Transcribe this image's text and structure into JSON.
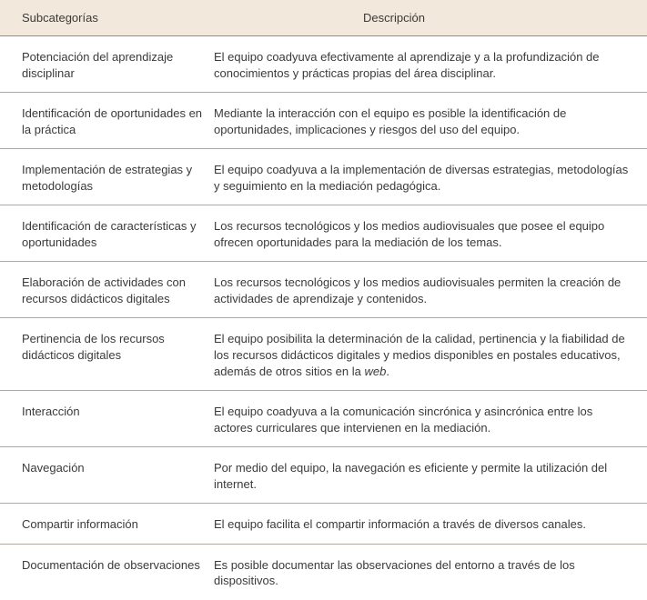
{
  "table": {
    "header": {
      "col1": "Subcategorías",
      "col2": "Descripción"
    },
    "rows": [
      {
        "label": "Potenciación del aprendizaje disciplinar",
        "desc": "El equipo coadyuva efectivamente al aprendizaje y a la profundización de conocimientos y prácticas propias del área disciplinar."
      },
      {
        "label": "Identificación de oportunidades en la práctica",
        "desc": "Mediante la interacción con el equipo es posible la identificación de oportunidades, implicaciones y riesgos del uso del equipo."
      },
      {
        "label": "Implementación de estrategias y metodologías",
        "desc": "El equipo coadyuva a la implementación de diversas estrategias, metodologías y seguimiento en la mediación pedagógica."
      },
      {
        "label": "Identificación de características y oportunidades",
        "desc": "Los recursos tecnológicos y los medios audiovisuales que posee el equipo ofrecen oportunidades para la mediación de los temas."
      },
      {
        "label": "Elaboración de actividades con recursos didácticos digitales",
        "desc": "Los recursos tecnológicos y los medios audiovisuales permiten la creación de actividades de aprendizaje y contenidos."
      },
      {
        "label": "Pertinencia de los recursos didácticos digitales",
        "desc_pre": "El equipo posibilita la determinación de la calidad, pertinencia y la fiabilidad de los recursos didácticos digitales y medios disponibles en postales educativos, además de otros sitios en la ",
        "desc_italic": "web",
        "desc_post": "."
      },
      {
        "label": "Interacción",
        "desc": "El equipo coadyuva a la comunicación sincrónica y asincrónica entre los actores curriculares que intervienen en la mediación."
      },
      {
        "label": "Navegación",
        "desc": "Por medio del equipo, la navegación es eficiente y permite la utilización del internet."
      },
      {
        "label": "Compartir información",
        "desc": "El equipo facilita el compartir información a través de diversos canales."
      },
      {
        "label": "Documentación de observaciones",
        "desc": "Es posible documentar las observaciones del entorno a través de los dispositivos."
      }
    ],
    "colors": {
      "header_bg": "#f2e8dc",
      "divider": "#b5a898",
      "text": "#3a3a3a"
    }
  }
}
